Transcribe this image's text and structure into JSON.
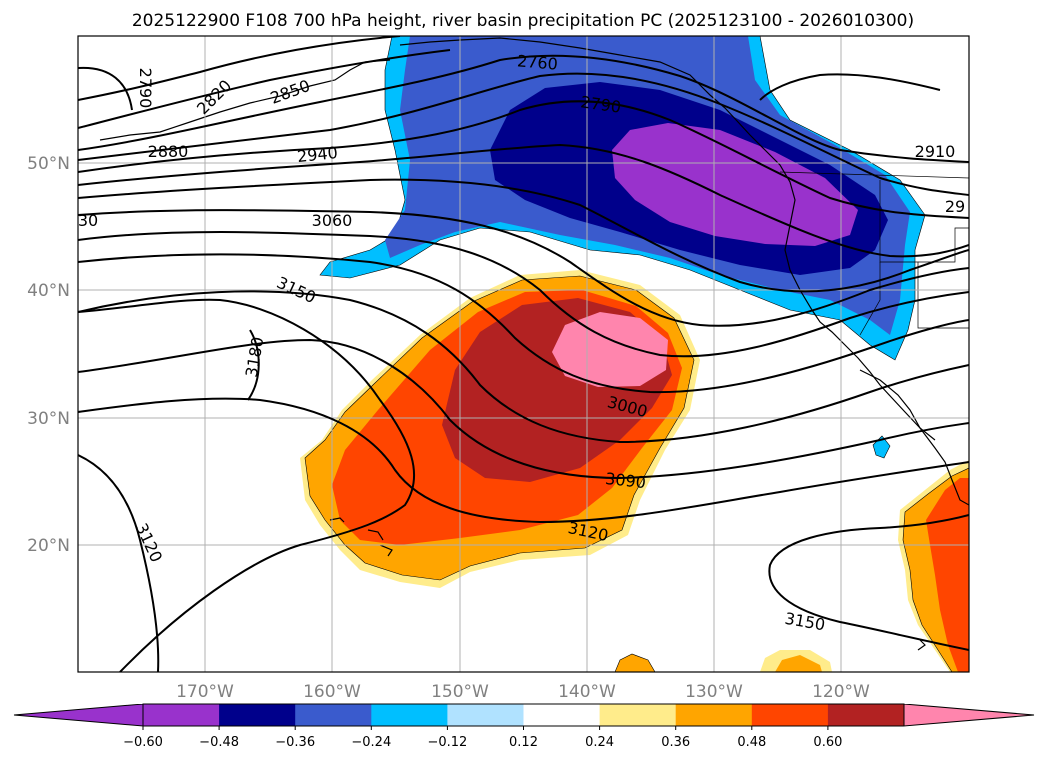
{
  "title": "2025122900 F108 700 hPa height, river basin precipitation PC (2025123100 - 2026010300)",
  "map": {
    "lat_labels": [
      "50°N",
      "40°N",
      "30°N",
      "20°N"
    ],
    "lon_labels": [
      "170°W",
      "160°W",
      "150°W",
      "140°W",
      "130°W",
      "120°W"
    ],
    "contour_labels": [
      "2760",
      "2790",
      "2790",
      "2820",
      "2850",
      "2880",
      "2910",
      "29",
      "2940",
      "30",
      "3060",
      "3150",
      "3180",
      "3000",
      "3090",
      "3120",
      "3120",
      "3150"
    ]
  },
  "colorbar": {
    "ticks": [
      "−0.60",
      "−0.48",
      "−0.36",
      "−0.24",
      "−0.12",
      "0.12",
      "0.24",
      "0.36",
      "0.48",
      "0.60"
    ],
    "colors": [
      "#9932cc",
      "#00008b",
      "#3a5bcd",
      "#00bfff",
      "#b0e2ff",
      "#ffffff",
      "#ffec8b",
      "#ffa500",
      "#ff4500",
      "#b22222",
      "#ff85ad",
      "#ff85ad"
    ]
  }
}
